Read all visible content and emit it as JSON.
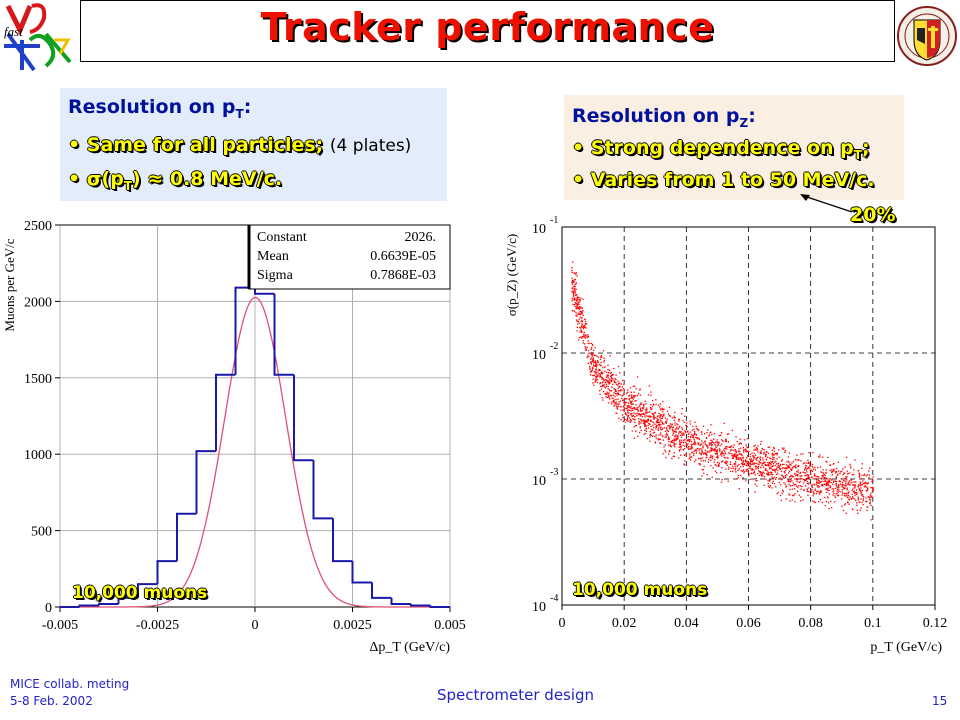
{
  "slide": {
    "title": "Tracker performance"
  },
  "left_box": {
    "heading": "Resolution on p",
    "heading_sub": "T",
    "heading_tail": ":",
    "bullet1": "• Same for all particles;",
    "bullet1_note": "(4 plates)",
    "bullet2_a": "• σ(p",
    "bullet2_sub": "T",
    "bullet2_b": ") ≈ 0.8 MeV/c."
  },
  "right_box": {
    "heading": "Resolution on p",
    "heading_sub": "Z",
    "heading_tail": ":",
    "bullet1": "• Strong dependence on p",
    "bullet1_sub": "T",
    "bullet1_tail": ";",
    "bullet2": "• Varies from 1 to 50 MeV/c."
  },
  "annotation": "20%",
  "left_chart": {
    "muons_label": "10,000 muons",
    "stats": {
      "rows": [
        {
          "name": "Constant",
          "value": "2026."
        },
        {
          "name": "Mean",
          "value": "0.6639E-05"
        },
        {
          "name": "Sigma",
          "value": "0.7868E-03"
        }
      ]
    }
  },
  "right_chart": {
    "muons_label": "10,000 muons"
  },
  "footer": {
    "line1": "MICE collab. meting",
    "line2": "5-8 Feb. 2002",
    "center": "Spectrometer design",
    "page": "15"
  },
  "colors": {
    "title": "#ee1100",
    "histogram": "#1a1aaa",
    "fit": "#e05070",
    "scatter": "#ff0000",
    "box_blue": "#e3ecfb",
    "box_peach": "#fbefe4"
  },
  "chart_data": [
    {
      "type": "bar",
      "xlabel": "Δp_T (GeV/c)",
      "ylabel": "Muons per GeV/c",
      "xlim": [
        -0.005,
        0.005
      ],
      "ylim": [
        0,
        2500
      ],
      "x_ticks": [
        "-0.005",
        "-0.0025",
        "0",
        "0.0025",
        "0.005"
      ],
      "y_ticks": [
        "0",
        "500",
        "1000",
        "1500",
        "2000",
        "2500"
      ],
      "bin_centers": [
        -0.00475,
        -0.00425,
        -0.00375,
        -0.00325,
        -0.00275,
        -0.00225,
        -0.00175,
        -0.00125,
        -0.00075,
        -0.00025,
        0.00025,
        0.00075,
        0.00125,
        0.00175,
        0.00225,
        0.00275,
        0.00325,
        0.00375,
        0.00425,
        0.00475
      ],
      "values": [
        0,
        10,
        20,
        60,
        150,
        300,
        610,
        1020,
        1520,
        2090,
        2050,
        1520,
        960,
        580,
        300,
        160,
        60,
        20,
        10,
        0
      ],
      "fit": {
        "constant": 2026.0,
        "mean": 6.639e-06,
        "sigma": 0.0007868
      },
      "grid": true
    },
    {
      "type": "scatter",
      "xlabel": "p_T (GeV/c)",
      "ylabel": "σ(p_Z) (GeV/c)",
      "xlim": [
        0,
        0.12
      ],
      "ylim": [
        0.0001,
        0.1
      ],
      "y_scale": "log",
      "x_ticks": [
        "0",
        "0.02",
        "0.04",
        "0.06",
        "0.08",
        "0.1",
        "0.12"
      ],
      "y_ticks": [
        {
          "base": "10",
          "exp": "-4"
        },
        {
          "base": "10",
          "exp": "-3"
        },
        {
          "base": "10",
          "exp": "-2"
        },
        {
          "base": "10",
          "exp": "-1"
        }
      ],
      "trend": [
        {
          "x": 0.003,
          "y": 0.035
        },
        {
          "x": 0.01,
          "y": 0.008
        },
        {
          "x": 0.02,
          "y": 0.004
        },
        {
          "x": 0.04,
          "y": 0.002
        },
        {
          "x": 0.06,
          "y": 0.0014
        },
        {
          "x": 0.08,
          "y": 0.001
        },
        {
          "x": 0.1,
          "y": 0.0008
        }
      ],
      "grid": true
    }
  ]
}
